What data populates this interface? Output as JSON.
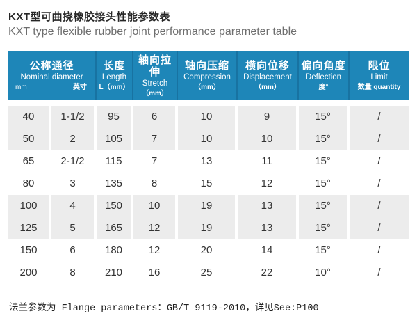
{
  "page": {
    "title_zh": "KXT型可曲挠橡胶接头性能参数表",
    "title_en": "KXT type flexible rubber joint performance parameter table",
    "footer": "法兰参数为 Flange parameters：GB/T 9119-2010，详见See:P100"
  },
  "colors": {
    "header_bg": "#1e86b8",
    "header_divider": "#1873a2",
    "stripe_gray": "#ececec",
    "body_text": "#333333"
  },
  "table": {
    "header": {
      "nominal": {
        "zh": "公称通径",
        "en": "Nominal diameter",
        "sub_left": "mm",
        "sub_right": "英寸"
      },
      "columns": [
        {
          "zh": "长度",
          "en": "Length",
          "sub": "L（mm）"
        },
        {
          "zh": "轴向拉伸",
          "en": "Stretch",
          "sub": "（mm）"
        },
        {
          "zh": "轴向压缩",
          "en": "Compression",
          "sub": "（mm）"
        },
        {
          "zh": "横向位移",
          "en": "Displacement",
          "sub": "（mm）"
        },
        {
          "zh": "偏向角度",
          "en": "Deflection",
          "sub": "度°"
        },
        {
          "zh": "限位",
          "en": "Limit",
          "sub": "数量 quantity"
        }
      ]
    },
    "rows": [
      [
        "40",
        "1-1/2",
        "95",
        "6",
        "10",
        "9",
        "15°",
        "/"
      ],
      [
        "50",
        "2",
        "105",
        "7",
        "10",
        "10",
        "15°",
        "/"
      ],
      [
        "65",
        "2-1/2",
        "115",
        "7",
        "13",
        "11",
        "15°",
        "/"
      ],
      [
        "80",
        "3",
        "135",
        "8",
        "15",
        "12",
        "15°",
        "/"
      ],
      [
        "100",
        "4",
        "150",
        "10",
        "19",
        "13",
        "15°",
        "/"
      ],
      [
        "125",
        "5",
        "165",
        "12",
        "19",
        "13",
        "15°",
        "/"
      ],
      [
        "150",
        "6",
        "180",
        "12",
        "20",
        "14",
        "15°",
        "/"
      ],
      [
        "200",
        "8",
        "210",
        "16",
        "25",
        "22",
        "10°",
        "/"
      ]
    ],
    "column_keys": [
      "mm",
      "inch",
      "length",
      "stretch",
      "compression",
      "displacement",
      "deflection",
      "limit"
    ]
  }
}
